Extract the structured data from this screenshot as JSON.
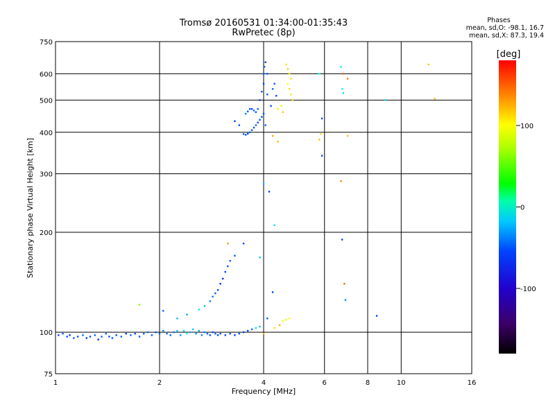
{
  "header": {
    "title_line1": "Tromsø 20160531 01:34:00-01:35:43",
    "title_line2": "RwPretec (8p)"
  },
  "phase_stats": {
    "title": "Phases",
    "line_o": "mean, sd,O: -98.1, 16.7",
    "line_x": "mean, sd,X: 87.3, 19.4"
  },
  "chart_data": {
    "type": "scatter",
    "xlabel": "Frequency [MHz]",
    "ylabel": "Stationary phase Virtual Height [km]",
    "xscale": "log",
    "yscale": "log",
    "xlim": [
      1,
      16
    ],
    "ylim": [
      75,
      750
    ],
    "x_ticks": [
      1,
      2,
      4,
      6,
      8,
      10,
      16
    ],
    "x_tick_labels": [
      "1",
      "2",
      "4",
      "6",
      "8",
      "10",
      "16"
    ],
    "y_ticks": [
      75,
      100,
      200,
      300,
      400,
      500,
      600,
      750
    ],
    "y_tick_labels": [
      "75",
      "100",
      "200",
      "300",
      "400",
      "500",
      "600",
      "750"
    ],
    "grid": true,
    "colorbar": {
      "label": "[deg]",
      "range": [
        -180,
        180
      ],
      "ticks": [
        100,
        0,
        -100
      ],
      "tick_labels": [
        "100",
        "0",
        "-100"
      ]
    },
    "series": [
      {
        "points": [
          [
            1.02,
            98,
            -120
          ],
          [
            1.05,
            99,
            -110
          ],
          [
            1.08,
            97,
            -115
          ],
          [
            1.1,
            98,
            -125
          ],
          [
            1.13,
            96,
            -112
          ],
          [
            1.16,
            97,
            -118
          ],
          [
            1.2,
            98,
            -108
          ],
          [
            1.23,
            96,
            -122
          ],
          [
            1.26,
            97,
            -116
          ],
          [
            1.3,
            98,
            -110
          ],
          [
            1.33,
            95,
            -128
          ],
          [
            1.36,
            97,
            -112
          ],
          [
            1.4,
            99,
            -106
          ],
          [
            1.43,
            97,
            -120
          ],
          [
            1.46,
            96,
            -114
          ],
          [
            1.5,
            98,
            -118
          ],
          [
            1.55,
            97,
            -110
          ],
          [
            1.6,
            99,
            -122
          ],
          [
            1.65,
            98,
            -108
          ],
          [
            1.7,
            99,
            -116
          ],
          [
            1.75,
            97,
            -114
          ],
          [
            1.8,
            99,
            -110
          ],
          [
            1.85,
            100,
            -104
          ],
          [
            1.9,
            98,
            -112
          ],
          [
            1.95,
            100,
            -118
          ],
          [
            2.0,
            99,
            -108
          ],
          [
            2.05,
            101,
            -100
          ],
          [
            2.1,
            99,
            -106
          ],
          [
            2.15,
            98,
            -112
          ],
          [
            2.2,
            100,
            -102
          ],
          [
            2.25,
            101,
            -80
          ],
          [
            2.3,
            98,
            -90
          ],
          [
            2.35,
            101,
            -70
          ],
          [
            2.4,
            99,
            -60
          ],
          [
            2.45,
            100,
            -85
          ],
          [
            2.5,
            102,
            -78
          ],
          [
            2.55,
            99,
            -92
          ],
          [
            2.6,
            101,
            -88
          ],
          [
            2.65,
            98,
            -96
          ],
          [
            2.7,
            100,
            -104
          ],
          [
            2.75,
            99,
            -110
          ],
          [
            2.8,
            98,
            -115
          ],
          [
            2.85,
            100,
            -120
          ],
          [
            2.9,
            99,
            -112
          ],
          [
            2.95,
            98,
            -118
          ],
          [
            3.0,
            99,
            -114
          ],
          [
            3.1,
            98,
            -120
          ],
          [
            3.2,
            99,
            -116
          ],
          [
            3.3,
            98,
            -122
          ],
          [
            3.4,
            99,
            -112
          ],
          [
            3.5,
            100,
            -125
          ],
          [
            3.6,
            101,
            -118
          ],
          [
            3.7,
            102,
            -110
          ],
          [
            3.8,
            103,
            -70
          ],
          [
            3.9,
            104,
            -80
          ],
          [
            4.0,
            99,
            120
          ],
          [
            4.3,
            103,
            110
          ],
          [
            4.45,
            105,
            125
          ],
          [
            4.55,
            108,
            95
          ],
          [
            4.65,
            109,
            90
          ],
          [
            4.75,
            110,
            100
          ],
          [
            1.75,
            121,
            60
          ],
          [
            2.05,
            116,
            -110
          ],
          [
            2.25,
            110,
            -80
          ],
          [
            2.4,
            113,
            -90
          ],
          [
            2.6,
            117,
            -70
          ],
          [
            2.7,
            120,
            -80
          ],
          [
            2.8,
            124,
            -100
          ],
          [
            2.85,
            128,
            -105
          ],
          [
            2.9,
            131,
            -112
          ],
          [
            2.95,
            134,
            -120
          ],
          [
            3.0,
            140,
            -128
          ],
          [
            3.05,
            145,
            -125
          ],
          [
            3.1,
            152,
            -120
          ],
          [
            3.15,
            158,
            -118
          ],
          [
            3.2,
            164,
            -110
          ],
          [
            3.3,
            170,
            -112
          ],
          [
            3.5,
            185,
            -118
          ],
          [
            3.9,
            168,
            -80
          ],
          [
            3.15,
            185,
            130
          ],
          [
            4.1,
            110,
            -110
          ],
          [
            4.25,
            132,
            -120
          ],
          [
            3.5,
            395,
            -110
          ],
          [
            3.55,
            393,
            -115
          ],
          [
            3.6,
            396,
            -120
          ],
          [
            3.65,
            400,
            -108
          ],
          [
            3.7,
            406,
            -112
          ],
          [
            3.75,
            413,
            -118
          ],
          [
            3.8,
            420,
            -110
          ],
          [
            3.85,
            428,
            -120
          ],
          [
            3.9,
            436,
            -114
          ],
          [
            3.95,
            445,
            -112
          ],
          [
            4.0,
            455,
            -118
          ],
          [
            3.55,
            455,
            -100
          ],
          [
            3.6,
            462,
            -110
          ],
          [
            3.65,
            470,
            -115
          ],
          [
            3.7,
            470,
            -120
          ],
          [
            3.75,
            465,
            -108
          ],
          [
            3.8,
            460,
            -112
          ],
          [
            3.3,
            432,
            -120
          ],
          [
            3.4,
            420,
            -118
          ],
          [
            3.85,
            470,
            -110
          ],
          [
            3.9,
            500,
            -118
          ],
          [
            3.95,
            530,
            -112
          ],
          [
            4.0,
            560,
            -120
          ],
          [
            4.0,
            600,
            -110
          ],
          [
            4.02,
            630,
            -115
          ],
          [
            4.05,
            650,
            -120
          ],
          [
            4.1,
            600,
            -110
          ],
          [
            4.1,
            520,
            -112
          ],
          [
            4.2,
            480,
            -118
          ],
          [
            4.25,
            540,
            -110
          ],
          [
            4.3,
            560,
            -112
          ],
          [
            4.35,
            515,
            -120
          ],
          [
            4.65,
            640,
            110
          ],
          [
            4.7,
            620,
            115
          ],
          [
            4.75,
            600,
            105
          ],
          [
            4.8,
            580,
            110
          ],
          [
            4.7,
            560,
            100
          ],
          [
            4.75,
            540,
            112
          ],
          [
            4.8,
            520,
            108
          ],
          [
            4.85,
            500,
            114
          ],
          [
            4.5,
            480,
            90
          ],
          [
            4.4,
            470,
            100
          ],
          [
            4.55,
            460,
            118
          ],
          [
            4.25,
            390,
            130
          ],
          [
            4.4,
            375,
            120
          ],
          [
            4.05,
            420,
            -110
          ],
          [
            4.0,
            280,
            -80
          ],
          [
            4.15,
            265,
            -120
          ],
          [
            4.3,
            210,
            -70
          ],
          [
            5.8,
            600,
            -60
          ],
          [
            5.9,
            440,
            -120
          ],
          [
            5.85,
            395,
            110
          ],
          [
            5.8,
            380,
            120
          ],
          [
            5.9,
            340,
            -120
          ],
          [
            6.7,
            630,
            -50
          ],
          [
            6.8,
            600,
            150
          ],
          [
            7.0,
            580,
            140
          ],
          [
            6.75,
            540,
            -60
          ],
          [
            6.8,
            525,
            -70
          ],
          [
            7.0,
            390,
            120
          ],
          [
            6.7,
            285,
            140
          ],
          [
            6.75,
            190,
            -120
          ],
          [
            6.85,
            140,
            150
          ],
          [
            6.9,
            125,
            -100
          ],
          [
            8.5,
            112,
            -120
          ],
          [
            9.0,
            500,
            -70
          ],
          [
            12.0,
            640,
            120
          ],
          [
            12.5,
            505,
            120
          ]
        ]
      }
    ]
  }
}
